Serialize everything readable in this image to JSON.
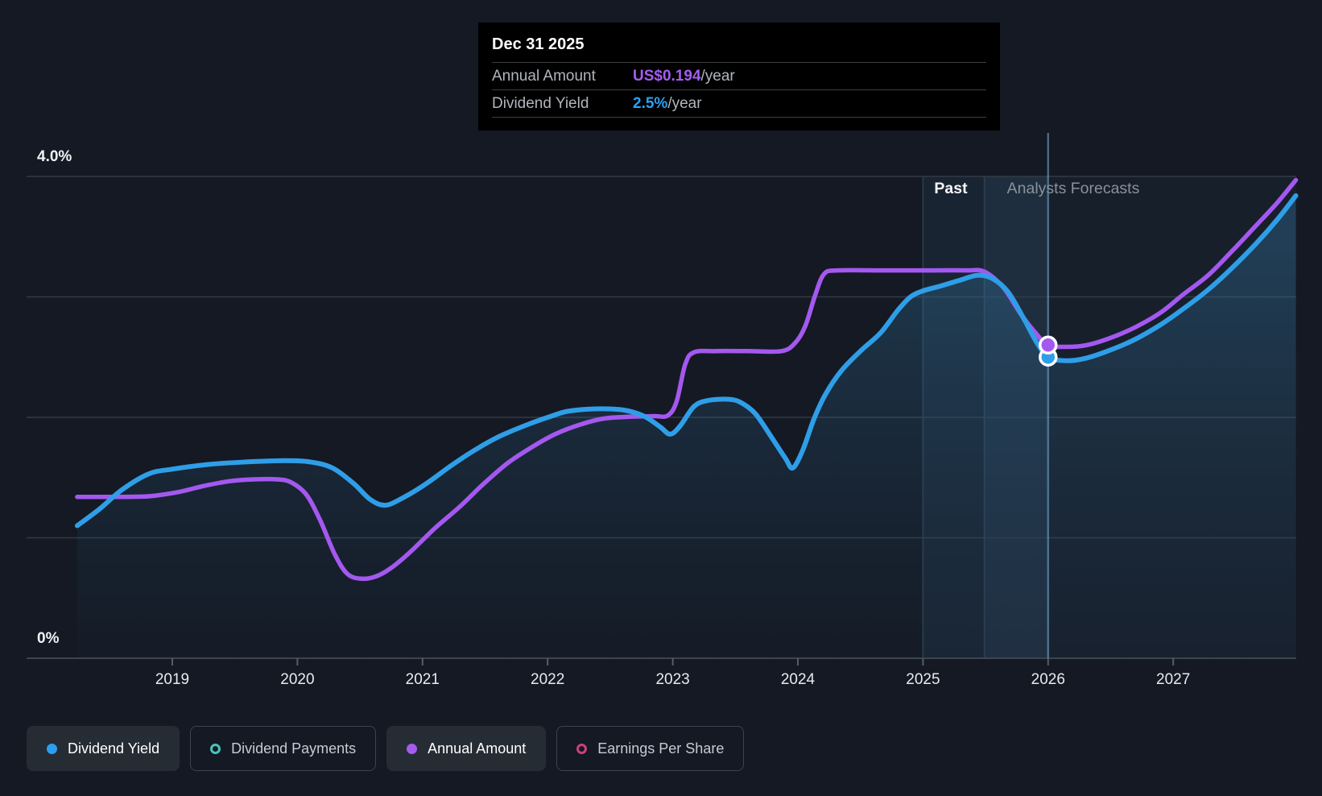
{
  "tooltip": {
    "date": "Dec 31 2025",
    "rows": [
      {
        "label": "Annual Amount",
        "value": "US$0.194",
        "suffix": "/year",
        "color": "#a45df2"
      },
      {
        "label": "Dividend Yield",
        "value": "2.5%",
        "suffix": "/year",
        "color": "#2ba2f2"
      }
    ]
  },
  "legend": {
    "items": [
      {
        "label": "Dividend Yield",
        "color": "#2b9ff0",
        "filled": true,
        "active": true
      },
      {
        "label": "Dividend Payments",
        "color": "#47c4bb",
        "filled": false,
        "active": false
      },
      {
        "label": "Annual Amount",
        "color": "#a55bf0",
        "filled": true,
        "active": true
      },
      {
        "label": "Earnings Per Share",
        "color": "#cd3f7f",
        "filled": false,
        "active": false
      }
    ]
  },
  "chart_data": {
    "type": "line",
    "title": "Dividend yield history and forecast",
    "xlabel": "",
    "ylabel": "Dividend Yield",
    "ylim": [
      0,
      4
    ],
    "xlim": [
      2018.24,
      2027.98
    ],
    "grid": "horizontal",
    "x_ticks": [
      2019,
      2020,
      2021,
      2022,
      2023,
      2024,
      2025,
      2026,
      2027
    ],
    "y_labels": [
      {
        "text": "4.0%",
        "pct": 4.0
      },
      {
        "text": "0%",
        "pct": 0.0
      }
    ],
    "zone_labels": {
      "past": "Past",
      "forecast": "Analysts Forecasts"
    },
    "divider_year": 2026.0,
    "highlight_band": {
      "start": 2025.0,
      "mid": 2025.49,
      "end": 2026.0
    },
    "marker": {
      "date": "Dec 31 2025",
      "year": 2026.0,
      "dividend_yield_pct": 2.5,
      "annual_amount_usd_per_year": 0.194,
      "annual_amount_plot_pct": 2.6
    },
    "series": [
      {
        "name": "Dividend Yield",
        "color": "#2f9ee8",
        "width": 6,
        "area": true,
        "points": [
          [
            2018.24,
            1.1
          ],
          [
            2018.42,
            1.24
          ],
          [
            2018.6,
            1.4
          ],
          [
            2018.81,
            1.53
          ],
          [
            2019.0,
            1.57
          ],
          [
            2019.3,
            1.61
          ],
          [
            2019.6,
            1.63
          ],
          [
            2019.9,
            1.64
          ],
          [
            2020.1,
            1.63
          ],
          [
            2020.28,
            1.58
          ],
          [
            2020.45,
            1.45
          ],
          [
            2020.58,
            1.32
          ],
          [
            2020.7,
            1.27
          ],
          [
            2020.84,
            1.33
          ],
          [
            2021.03,
            1.45
          ],
          [
            2021.23,
            1.6
          ],
          [
            2021.42,
            1.73
          ],
          [
            2021.61,
            1.84
          ],
          [
            2021.84,
            1.94
          ],
          [
            2022.03,
            2.01
          ],
          [
            2022.16,
            2.05
          ],
          [
            2022.38,
            2.07
          ],
          [
            2022.61,
            2.06
          ],
          [
            2022.77,
            2.01
          ],
          [
            2022.9,
            1.92
          ],
          [
            2022.98,
            1.86
          ],
          [
            2023.06,
            1.93
          ],
          [
            2023.17,
            2.09
          ],
          [
            2023.28,
            2.14
          ],
          [
            2023.45,
            2.15
          ],
          [
            2023.55,
            2.12
          ],
          [
            2023.66,
            2.03
          ],
          [
            2023.78,
            1.85
          ],
          [
            2023.9,
            1.66
          ],
          [
            2023.96,
            1.58
          ],
          [
            2024.04,
            1.73
          ],
          [
            2024.13,
            1.99
          ],
          [
            2024.22,
            2.19
          ],
          [
            2024.35,
            2.39
          ],
          [
            2024.51,
            2.56
          ],
          [
            2024.66,
            2.7
          ],
          [
            2024.8,
            2.89
          ],
          [
            2024.9,
            3.0
          ],
          [
            2025.0,
            3.05
          ],
          [
            2025.14,
            3.09
          ],
          [
            2025.3,
            3.14
          ],
          [
            2025.44,
            3.18
          ],
          [
            2025.56,
            3.15
          ],
          [
            2025.68,
            3.04
          ],
          [
            2025.8,
            2.83
          ],
          [
            2025.91,
            2.62
          ],
          [
            2026.0,
            2.5
          ],
          [
            2026.14,
            2.47
          ],
          [
            2026.3,
            2.49
          ],
          [
            2026.5,
            2.56
          ],
          [
            2026.7,
            2.65
          ],
          [
            2026.9,
            2.77
          ],
          [
            2027.08,
            2.9
          ],
          [
            2027.28,
            3.06
          ],
          [
            2027.47,
            3.24
          ],
          [
            2027.66,
            3.44
          ],
          [
            2027.83,
            3.64
          ],
          [
            2027.98,
            3.84
          ]
        ]
      },
      {
        "name": "Annual Amount",
        "color": "#a458f0",
        "width": 5.5,
        "area": false,
        "points": [
          [
            2018.24,
            1.34
          ],
          [
            2018.6,
            1.34
          ],
          [
            2018.82,
            1.345
          ],
          [
            2019.05,
            1.38
          ],
          [
            2019.25,
            1.43
          ],
          [
            2019.46,
            1.47
          ],
          [
            2019.65,
            1.485
          ],
          [
            2019.84,
            1.485
          ],
          [
            2019.95,
            1.46
          ],
          [
            2020.07,
            1.36
          ],
          [
            2020.18,
            1.15
          ],
          [
            2020.3,
            0.86
          ],
          [
            2020.4,
            0.7
          ],
          [
            2020.51,
            0.66
          ],
          [
            2020.63,
            0.68
          ],
          [
            2020.75,
            0.75
          ],
          [
            2020.9,
            0.88
          ],
          [
            2021.1,
            1.08
          ],
          [
            2021.3,
            1.26
          ],
          [
            2021.48,
            1.44
          ],
          [
            2021.68,
            1.62
          ],
          [
            2021.87,
            1.75
          ],
          [
            2022.06,
            1.86
          ],
          [
            2022.26,
            1.94
          ],
          [
            2022.45,
            1.99
          ],
          [
            2022.65,
            2.005
          ],
          [
            2022.85,
            2.01
          ],
          [
            2022.96,
            2.015
          ],
          [
            2023.03,
            2.13
          ],
          [
            2023.1,
            2.44
          ],
          [
            2023.17,
            2.54
          ],
          [
            2023.35,
            2.55
          ],
          [
            2023.6,
            2.55
          ],
          [
            2023.87,
            2.55
          ],
          [
            2023.98,
            2.62
          ],
          [
            2024.06,
            2.76
          ],
          [
            2024.14,
            3.02
          ],
          [
            2024.21,
            3.19
          ],
          [
            2024.32,
            3.22
          ],
          [
            2024.7,
            3.22
          ],
          [
            2025.1,
            3.22
          ],
          [
            2025.35,
            3.22
          ],
          [
            2025.49,
            3.21
          ],
          [
            2025.64,
            3.08
          ],
          [
            2025.78,
            2.86
          ],
          [
            2025.9,
            2.7
          ],
          [
            2026.0,
            2.6
          ],
          [
            2026.15,
            2.585
          ],
          [
            2026.31,
            2.6
          ],
          [
            2026.5,
            2.66
          ],
          [
            2026.7,
            2.75
          ],
          [
            2026.9,
            2.87
          ],
          [
            2027.08,
            3.02
          ],
          [
            2027.28,
            3.18
          ],
          [
            2027.47,
            3.38
          ],
          [
            2027.66,
            3.59
          ],
          [
            2027.83,
            3.78
          ],
          [
            2027.98,
            3.97
          ]
        ]
      }
    ]
  }
}
